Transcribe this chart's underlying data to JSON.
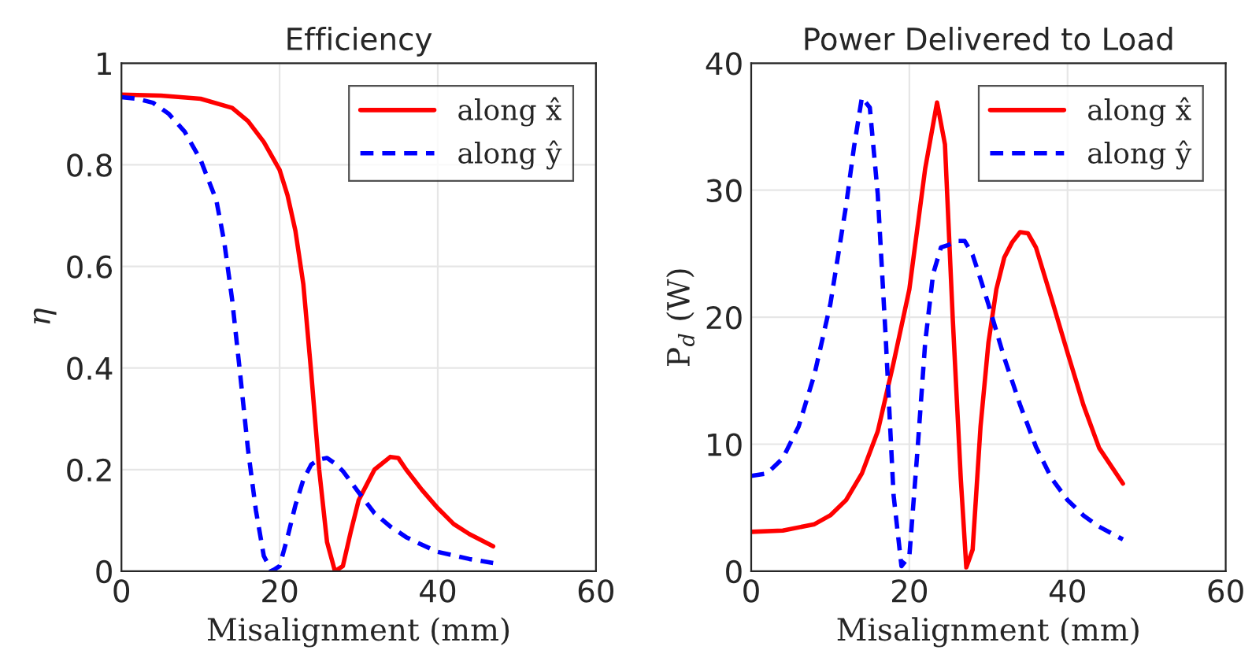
{
  "chart_data": [
    {
      "type": "line",
      "title": "Efficiency",
      "xlabel": "Misalignment (mm)",
      "ylabel": "η",
      "xlim": [
        0,
        60
      ],
      "xticks": [
        0,
        20,
        40,
        60
      ],
      "ylim": [
        0,
        1
      ],
      "yticks": [
        0,
        0.2,
        0.4,
        0.6,
        0.8,
        1
      ],
      "grid": true,
      "legend": "top right",
      "series": [
        {
          "name": "along x̂",
          "color": "#ff0000",
          "line_style": "solid",
          "x": [
            0,
            5,
            10,
            14,
            16,
            18,
            20,
            21,
            22,
            23,
            24,
            25,
            26,
            27,
            28,
            29,
            30,
            31,
            32,
            34,
            35,
            36,
            38,
            40,
            42,
            44,
            47
          ],
          "values": [
            0.938,
            0.936,
            0.93,
            0.912,
            0.886,
            0.845,
            0.79,
            0.74,
            0.67,
            0.565,
            0.39,
            0.2,
            0.057,
            0,
            0.01,
            0.078,
            0.14,
            0.17,
            0.2,
            0.225,
            0.223,
            0.2,
            0.16,
            0.124,
            0.093,
            0.073,
            0.049
          ]
        },
        {
          "name": "along ŷ",
          "color": "#0000ff",
          "line_style": "dashed",
          "x": [
            0,
            2,
            4,
            6,
            8,
            10,
            12,
            13,
            14,
            15,
            16,
            17,
            18,
            19,
            20,
            21,
            22,
            23,
            24,
            25,
            26,
            27,
            28,
            30,
            32,
            34,
            36,
            38,
            40,
            42,
            44,
            47
          ],
          "values": [
            0.933,
            0.93,
            0.922,
            0.9,
            0.865,
            0.81,
            0.73,
            0.648,
            0.534,
            0.39,
            0.24,
            0.12,
            0.03,
            0,
            0.01,
            0.067,
            0.13,
            0.18,
            0.21,
            0.22,
            0.223,
            0.212,
            0.197,
            0.155,
            0.114,
            0.088,
            0.067,
            0.052,
            0.038,
            0.031,
            0.024,
            0.016
          ]
        }
      ]
    },
    {
      "type": "line",
      "title": "Power Delivered to Load",
      "xlabel": "Misalignment (mm)",
      "ylabel": "P$_{d}$ (W)",
      "xlim": [
        0,
        60
      ],
      "xticks": [
        0,
        20,
        40,
        60
      ],
      "ylim": [
        0,
        40
      ],
      "yticks": [
        0,
        10,
        20,
        30,
        40
      ],
      "grid": true,
      "legend": "top right",
      "series": [
        {
          "name": "along x̂",
          "color": "#ff0000",
          "line_style": "solid",
          "x": [
            0,
            4,
            8,
            10,
            12,
            14,
            16,
            18,
            20,
            22,
            23.5,
            24.5,
            25.5,
            26.5,
            27.2,
            28,
            29,
            30,
            31,
            32,
            33,
            34,
            35,
            36,
            38,
            40,
            42,
            44,
            47
          ],
          "values": [
            3.1,
            3.2,
            3.7,
            4.4,
            5.6,
            7.7,
            11,
            16.4,
            22.2,
            31.7,
            36.9,
            33.6,
            19.7,
            7.3,
            0.3,
            1.7,
            11.4,
            18,
            22.2,
            24.7,
            25.9,
            26.7,
            26.6,
            25.5,
            21.4,
            17.2,
            13.1,
            9.7,
            6.9
          ]
        },
        {
          "name": "along ŷ",
          "color": "#0000ff",
          "line_style": "dashed",
          "x": [
            0,
            2,
            4,
            6,
            8,
            10,
            12,
            13,
            14,
            15,
            16,
            17,
            18,
            19,
            20,
            21,
            22,
            23,
            24,
            25,
            26,
            27,
            28,
            29,
            30,
            32,
            34,
            36,
            38,
            40,
            42,
            44,
            47
          ],
          "values": [
            7.5,
            7.7,
            8.9,
            11.4,
            15.5,
            21,
            28.8,
            33.4,
            37.3,
            36.5,
            29.7,
            18.5,
            6,
            0.4,
            1.2,
            9.3,
            18,
            23.4,
            25.5,
            25.7,
            26,
            26,
            24.9,
            23,
            21,
            16.8,
            13.1,
            9.8,
            7.3,
            5.6,
            4.4,
            3.5,
            2.5
          ]
        }
      ]
    }
  ]
}
